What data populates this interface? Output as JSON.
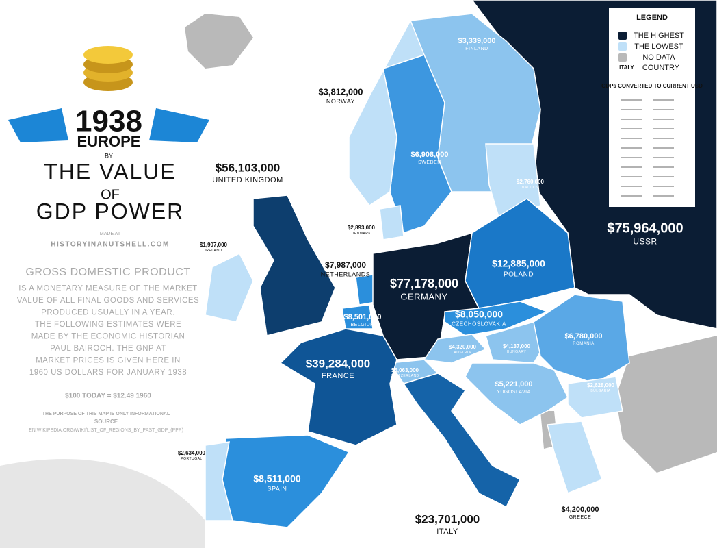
{
  "header": {
    "year": "1938",
    "region": "EUROPE",
    "by": "BY",
    "title_1": "THE VALUE",
    "title_2": "OF",
    "title_3": "GDP POWER",
    "made_at": "MADE AT",
    "site": "HISTORYINANUTSHELL.COM"
  },
  "description": {
    "lines": [
      "GROSS DOMESTIC PRODUCT",
      "IS A MONETARY MEASURE OF THE MARKET",
      "VALUE OF ALL FINAL GOODS AND SERVICES",
      "PRODUCED USUALLY IN A YEAR.",
      "THE FOLLOWING ESTIMATES WERE",
      "MADE BY THE ECONOMIC HISTORIAN",
      "PAUL BAIROCH. THE GNP AT",
      "MARKET PRICES IS GIVEN HERE IN",
      "1960 US DOLLARS FOR JANUARY 1938"
    ],
    "conversion": "$100 TODAY = $12.49 1960",
    "purpose": "THE PURPOSE OF THIS MAP IS ONLY INFORMATIONAL",
    "source_label": "SOURCE",
    "source": "EN.WIKIPEDIA.ORG/WIKI/LIST_OF_REGIONS_BY_PAST_GDP_(PPP)"
  },
  "legend": {
    "title": "LEGEND",
    "items": [
      {
        "label": "THE HIGHEST",
        "color": "#0b1d34"
      },
      {
        "label": "THE LOWEST",
        "color": "#bfe0f8"
      },
      {
        "label": "NO DATA",
        "color": "#b9b9b9"
      }
    ],
    "example_name": "ITALY",
    "example_label": "COUNTRY",
    "note": "GDPs CONVERTED TO CURRENT USD"
  },
  "countries": [
    {
      "value": "$75,964,000",
      "name": "USSR",
      "color": "#0b1d34"
    },
    {
      "value": "$3,339,000",
      "name": "FINLAND",
      "color": "#8cc4ee"
    },
    {
      "value": "$6,908,000",
      "name": "SWEDEN",
      "color": "#3d97e0"
    },
    {
      "value": "$3,812,000",
      "name": "NORWAY",
      "color": "#bfe0f8"
    },
    {
      "value": "$2,760,000",
      "name": "BALTICS",
      "color": "#bfe0f8"
    },
    {
      "value": "$2,893,000",
      "name": "DENMARK",
      "color": "#bfe0f8"
    },
    {
      "value": "$1,907,000",
      "name": "IRELAND",
      "color": "#bfe0f8"
    },
    {
      "value": "$56,103,000",
      "name": "UNITED KINGDOM",
      "color": "#0d3e6e"
    },
    {
      "value": "$7,987,000",
      "name": "NETHERLANDS",
      "color": "#2b8fdc"
    },
    {
      "value": "$8,501,000",
      "name": "BELGIUM",
      "color": "#2b8fdc"
    },
    {
      "value": "$77,178,000",
      "name": "GERMANY",
      "color": "#0b1d34"
    },
    {
      "value": "$12,885,000",
      "name": "POLAND",
      "color": "#1a78c8"
    },
    {
      "value": "$8,050,000",
      "name": "CZECHOSLOVAKIA",
      "color": "#2b8fdc"
    },
    {
      "value": "$4,320,000",
      "name": "AUSTRIA",
      "color": "#8cc4ee"
    },
    {
      "value": "$4,137,000",
      "name": "HUNGARY",
      "color": "#8cc4ee"
    },
    {
      "value": "$6,780,000",
      "name": "ROMANIA",
      "color": "#5aa8e6"
    },
    {
      "value": "$5,221,000",
      "name": "YUGOSLAVIA",
      "color": "#8cc4ee"
    },
    {
      "value": "$2,628,000",
      "name": "BULGARIA",
      "color": "#bfe0f8"
    },
    {
      "value": "$5,063,000",
      "name": "SWITZERLAND",
      "color": "#8cc4ee"
    },
    {
      "value": "$39,284,000",
      "name": "FRANCE",
      "color": "#0f5596"
    },
    {
      "value": "$8,511,000",
      "name": "SPAIN",
      "color": "#2b8fdc"
    },
    {
      "value": "$2,634,000",
      "name": "PORTUGAL",
      "color": "#bfe0f8"
    },
    {
      "value": "$23,701,000",
      "name": "ITALY",
      "color": "#1563a8"
    },
    {
      "value": "$4,200,000",
      "name": "GREECE",
      "color": "#bfe0f8"
    }
  ]
}
